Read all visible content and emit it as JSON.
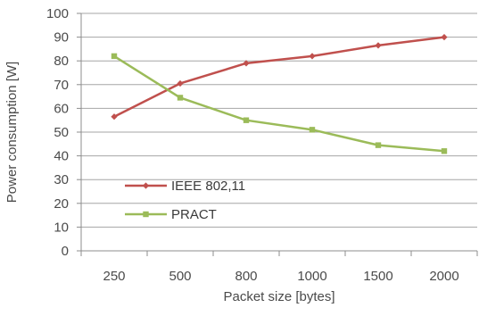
{
  "chart_data": {
    "type": "line",
    "title": "",
    "xlabel": "Packet size [bytes]",
    "ylabel": "Power consumption [W]",
    "categories": [
      "250",
      "500",
      "800",
      "1000",
      "1500",
      "2000"
    ],
    "ylim": [
      0,
      100
    ],
    "yticks": [
      "0",
      "10",
      "20",
      "30",
      "40",
      "50",
      "60",
      "70",
      "80",
      "90",
      "100"
    ],
    "grid": true,
    "legend_position": "lower-left",
    "series": [
      {
        "name": "IEEE 802,11",
        "color": "#c0504d",
        "marker": "diamond",
        "values": [
          56.5,
          70.5,
          79,
          82,
          86.5,
          90
        ]
      },
      {
        "name": "PRACT",
        "color": "#9bbb59",
        "marker": "square",
        "values": [
          82,
          64.5,
          55,
          51,
          44.5,
          42
        ]
      }
    ]
  }
}
